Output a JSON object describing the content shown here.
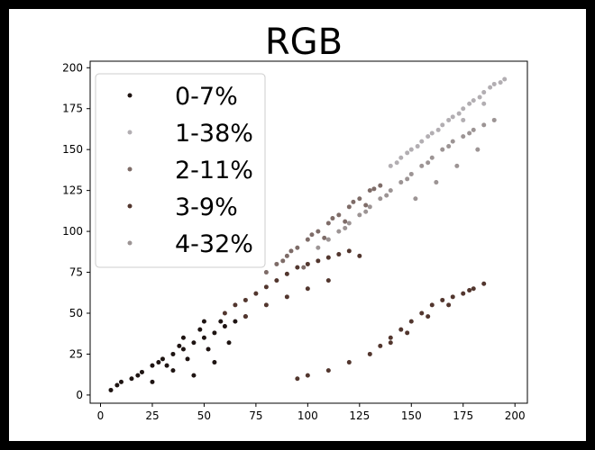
{
  "chart_data": {
    "type": "scatter",
    "title": "RGB",
    "xlabel": "",
    "ylabel": "",
    "xlim": [
      -5,
      206
    ],
    "ylim": [
      -5,
      204
    ],
    "xticks": [
      0,
      25,
      50,
      75,
      100,
      125,
      150,
      175,
      200
    ],
    "yticks": [
      0,
      25,
      50,
      75,
      100,
      125,
      150,
      175,
      200
    ],
    "grid": false,
    "legend_position": "top-left",
    "series": [
      {
        "name": "0-7%",
        "color": "#1e1412",
        "points": [
          [
            5,
            3
          ],
          [
            10,
            8
          ],
          [
            15,
            10
          ],
          [
            20,
            14
          ],
          [
            25,
            18
          ],
          [
            30,
            22
          ],
          [
            35,
            25
          ],
          [
            40,
            28
          ],
          [
            45,
            32
          ],
          [
            50,
            35
          ],
          [
            55,
            38
          ],
          [
            60,
            42
          ],
          [
            65,
            45
          ],
          [
            8,
            6
          ],
          [
            18,
            12
          ],
          [
            28,
            20
          ],
          [
            38,
            30
          ],
          [
            48,
            40
          ],
          [
            58,
            45
          ],
          [
            70,
            48
          ],
          [
            32,
            18
          ],
          [
            42,
            22
          ],
          [
            52,
            28
          ],
          [
            62,
            32
          ],
          [
            45,
            12
          ],
          [
            55,
            20
          ],
          [
            25,
            8
          ],
          [
            35,
            15
          ],
          [
            40,
            35
          ],
          [
            50,
            45
          ]
        ]
      },
      {
        "name": "1-38%",
        "color": "#b2aeb2",
        "points": [
          [
            140,
            140
          ],
          [
            145,
            145
          ],
          [
            150,
            150
          ],
          [
            155,
            155
          ],
          [
            160,
            160
          ],
          [
            165,
            165
          ],
          [
            170,
            170
          ],
          [
            175,
            175
          ],
          [
            180,
            180
          ],
          [
            185,
            185
          ],
          [
            190,
            190
          ],
          [
            195,
            193
          ],
          [
            148,
            148
          ],
          [
            158,
            158
          ],
          [
            168,
            168
          ],
          [
            178,
            178
          ],
          [
            188,
            188
          ],
          [
            143,
            142
          ],
          [
            153,
            152
          ],
          [
            163,
            162
          ],
          [
            173,
            172
          ],
          [
            183,
            182
          ],
          [
            193,
            191
          ],
          [
            185,
            178
          ],
          [
            175,
            168
          ]
        ]
      },
      {
        "name": "2-11%",
        "color": "#7e6c68",
        "points": [
          [
            95,
            90
          ],
          [
            100,
            95
          ],
          [
            105,
            100
          ],
          [
            110,
            105
          ],
          [
            115,
            110
          ],
          [
            120,
            115
          ],
          [
            125,
            120
          ],
          [
            130,
            125
          ],
          [
            135,
            128
          ],
          [
            85,
            80
          ],
          [
            80,
            75
          ],
          [
            90,
            85
          ],
          [
            102,
            98
          ],
          [
            112,
            108
          ],
          [
            122,
            118
          ],
          [
            132,
            126
          ],
          [
            108,
            96
          ],
          [
            118,
            106
          ],
          [
            128,
            116
          ],
          [
            98,
            78
          ],
          [
            92,
            88
          ],
          [
            88,
            82
          ]
        ]
      },
      {
        "name": "3-9%",
        "color": "#52362e",
        "points": [
          [
            60,
            50
          ],
          [
            65,
            55
          ],
          [
            70,
            58
          ],
          [
            75,
            62
          ],
          [
            80,
            66
          ],
          [
            85,
            70
          ],
          [
            90,
            74
          ],
          [
            95,
            78
          ],
          [
            100,
            80
          ],
          [
            105,
            82
          ],
          [
            110,
            84
          ],
          [
            115,
            86
          ],
          [
            120,
            88
          ],
          [
            70,
            48
          ],
          [
            80,
            55
          ],
          [
            90,
            60
          ],
          [
            100,
            65
          ],
          [
            110,
            70
          ],
          [
            125,
            85
          ],
          [
            135,
            30
          ],
          [
            140,
            35
          ],
          [
            145,
            40
          ],
          [
            150,
            45
          ],
          [
            155,
            50
          ],
          [
            160,
            55
          ],
          [
            165,
            58
          ],
          [
            170,
            60
          ],
          [
            175,
            62
          ],
          [
            180,
            65
          ],
          [
            185,
            68
          ],
          [
            130,
            25
          ],
          [
            120,
            20
          ],
          [
            110,
            15
          ],
          [
            100,
            12
          ],
          [
            148,
            38
          ],
          [
            158,
            48
          ],
          [
            168,
            55
          ],
          [
            178,
            64
          ],
          [
            95,
            10
          ],
          [
            140,
            32
          ]
        ]
      },
      {
        "name": "4-32%",
        "color": "#9c9494",
        "points": [
          [
            110,
            95
          ],
          [
            115,
            100
          ],
          [
            120,
            105
          ],
          [
            125,
            110
          ],
          [
            130,
            115
          ],
          [
            135,
            120
          ],
          [
            140,
            125
          ],
          [
            145,
            130
          ],
          [
            150,
            135
          ],
          [
            155,
            140
          ],
          [
            160,
            145
          ],
          [
            165,
            150
          ],
          [
            170,
            155
          ],
          [
            175,
            158
          ],
          [
            180,
            162
          ],
          [
            185,
            165
          ],
          [
            190,
            168
          ],
          [
            118,
            102
          ],
          [
            128,
            112
          ],
          [
            138,
            122
          ],
          [
            148,
            132
          ],
          [
            158,
            142
          ],
          [
            168,
            152
          ],
          [
            178,
            160
          ],
          [
            105,
            90
          ],
          [
            152,
            120
          ],
          [
            162,
            130
          ],
          [
            172,
            140
          ],
          [
            182,
            150
          ]
        ]
      }
    ]
  }
}
